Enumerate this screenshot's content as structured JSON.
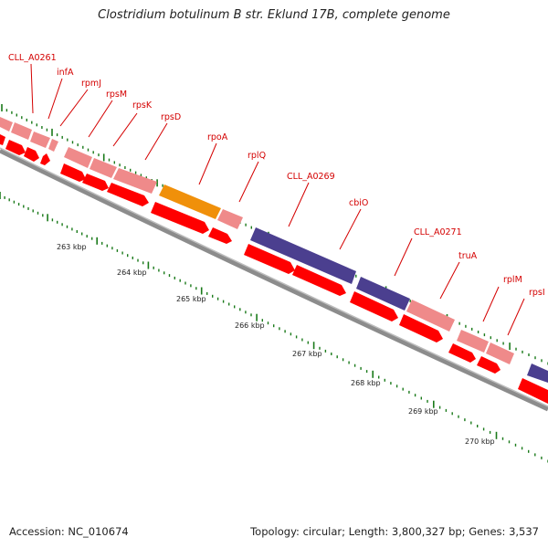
{
  "title": "Clostridium botulinum B str. Eklund 17B, complete genome",
  "footer": {
    "accession": "Accession: NC_010674",
    "summary": "Topology: circular; Length: 3,800,327 bp; Genes: 3,537"
  },
  "colors": {
    "cds": "#ff0000",
    "rna": "#ef8a8a",
    "highlight_orange": "#f0900a",
    "highlight_purple": "#4b3f8f",
    "backbone": "#909090",
    "tick": "#1a7a1a",
    "label": "#d40000"
  },
  "gene_labels": [
    "CLL_A0261",
    "infA",
    "rpmJ",
    "rpsM",
    "rpsK",
    "rpsD",
    "rpoA",
    "rplQ",
    "CLL_A0269",
    "cbiO",
    "CLL_A0271",
    "truA",
    "rplM",
    "rpsI"
  ],
  "scale_labels": [
    "263 kbp",
    "264 kbp",
    "265 kbp",
    "266 kbp",
    "267 kbp",
    "268 kbp",
    "269 kbp",
    "270 kbp"
  ]
}
